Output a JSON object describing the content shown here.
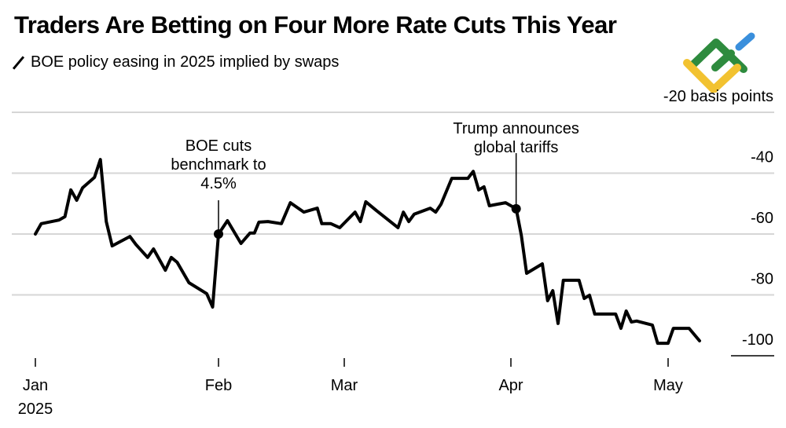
{
  "title": "Traders Are Betting on Four More Rate Cuts This Year",
  "subtitle": "BOE policy easing in 2025 implied by swaps",
  "legend_icon": "line-slash-icon",
  "logo": {
    "icon": "green-yellow-blue-logo",
    "colors": [
      "#2e8b3e",
      "#f2c230",
      "#3a8fdc"
    ]
  },
  "chart_data": {
    "type": "line",
    "title": "Traders Are Betting on Four More Rate Cuts This Year",
    "subtitle": "BOE policy easing in 2025 implied by swaps",
    "ylabel": "-20 basis points",
    "ylim": [
      -100,
      -20
    ],
    "yticks": [
      {
        "value": -20,
        "label": "-20 basis points"
      },
      {
        "value": -40,
        "label": "-40"
      },
      {
        "value": -60,
        "label": "-60"
      },
      {
        "value": -80,
        "label": "-80"
      },
      {
        "value": -100,
        "label": "-100"
      }
    ],
    "xticks": [
      {
        "date": "2025-01-01",
        "label": "Jan",
        "sublabel": "2025"
      },
      {
        "date": "2025-02-01",
        "label": "Feb"
      },
      {
        "date": "2025-03-01",
        "label": "Mar"
      },
      {
        "date": "2025-04-01",
        "label": "Apr"
      },
      {
        "date": "2025-05-01",
        "label": "May"
      }
    ],
    "grid": true,
    "line_color": "#000000",
    "series": [
      {
        "points": [
          [
            "2025-01-01",
            -60.0
          ],
          [
            "2025-01-02",
            -56.6
          ],
          [
            "2025-01-05",
            -55.4
          ],
          [
            "2025-01-06",
            -54.3
          ],
          [
            "2025-01-07",
            -45.5
          ],
          [
            "2025-01-08",
            -48.9
          ],
          [
            "2025-01-09",
            -44.8
          ],
          [
            "2025-01-11",
            -41.4
          ],
          [
            "2025-01-12",
            -35.5
          ],
          [
            "2025-01-13",
            -55.9
          ],
          [
            "2025-01-14",
            -63.9
          ],
          [
            "2025-01-17",
            -60.8
          ],
          [
            "2025-01-18",
            -63.4
          ],
          [
            "2025-01-20",
            -67.7
          ],
          [
            "2025-01-21",
            -64.9
          ],
          [
            "2025-01-23",
            -71.9
          ],
          [
            "2025-01-24",
            -67.7
          ],
          [
            "2025-01-25",
            -69.3
          ],
          [
            "2025-01-27",
            -76.0
          ],
          [
            "2025-01-30",
            -79.6
          ],
          [
            "2025-01-31",
            -84.0
          ],
          [
            "2025-02-01",
            -60.0
          ],
          [
            "2025-02-03",
            -55.6
          ],
          [
            "2025-02-06",
            -63.1
          ],
          [
            "2025-02-08",
            -59.7
          ],
          [
            "2025-02-09",
            -59.7
          ],
          [
            "2025-02-10",
            -56.1
          ],
          [
            "2025-02-12",
            -55.9
          ],
          [
            "2025-02-15",
            -56.6
          ],
          [
            "2025-02-17",
            -49.7
          ],
          [
            "2025-02-20",
            -52.8
          ],
          [
            "2025-02-23",
            -51.5
          ],
          [
            "2025-02-24",
            -56.6
          ],
          [
            "2025-02-26",
            -56.6
          ],
          [
            "2025-02-28",
            -57.9
          ],
          [
            "2025-03-03",
            -52.8
          ],
          [
            "2025-03-04",
            -55.9
          ],
          [
            "2025-03-05",
            -49.4
          ],
          [
            "2025-03-07",
            -52.3
          ],
          [
            "2025-03-11",
            -57.9
          ],
          [
            "2025-03-12",
            -52.8
          ],
          [
            "2025-03-13",
            -55.9
          ],
          [
            "2025-03-14",
            -53.5
          ],
          [
            "2025-03-17",
            -51.5
          ],
          [
            "2025-03-18",
            -52.8
          ],
          [
            "2025-03-19",
            -50.2
          ],
          [
            "2025-03-21",
            -41.7
          ],
          [
            "2025-03-24",
            -41.7
          ],
          [
            "2025-03-25",
            -39.4
          ],
          [
            "2025-03-26",
            -45.5
          ],
          [
            "2025-03-27",
            -44.5
          ],
          [
            "2025-03-28",
            -50.7
          ],
          [
            "2025-03-31",
            -49.7
          ],
          [
            "2025-04-02",
            -51.7
          ],
          [
            "2025-04-03",
            -60.5
          ],
          [
            "2025-04-04",
            -72.9
          ],
          [
            "2025-04-07",
            -69.8
          ],
          [
            "2025-04-08",
            -81.9
          ],
          [
            "2025-04-09",
            -78.6
          ],
          [
            "2025-04-10",
            -89.4
          ],
          [
            "2025-04-11",
            -75.2
          ],
          [
            "2025-04-14",
            -75.2
          ],
          [
            "2025-04-15",
            -81.2
          ],
          [
            "2025-04-16",
            -80.1
          ],
          [
            "2025-04-17",
            -86.3
          ],
          [
            "2025-04-21",
            -86.3
          ],
          [
            "2025-04-22",
            -91.0
          ],
          [
            "2025-04-23",
            -85.3
          ],
          [
            "2025-04-24",
            -88.9
          ],
          [
            "2025-04-25",
            -88.6
          ],
          [
            "2025-04-28",
            -89.9
          ],
          [
            "2025-04-29",
            -95.9
          ],
          [
            "2025-05-01",
            -95.9
          ],
          [
            "2025-05-02",
            -91.0
          ],
          [
            "2025-05-05",
            -91.0
          ],
          [
            "2025-05-07",
            -95.1
          ]
        ]
      }
    ],
    "annotations": [
      {
        "date": "2025-02-01",
        "value": -60.0,
        "lines": [
          "BOE cuts",
          "benchmark to",
          "4.5%"
        ]
      },
      {
        "date": "2025-04-02",
        "value": -51.7,
        "lines": [
          "Trump announces",
          "global tariffs"
        ]
      }
    ]
  }
}
